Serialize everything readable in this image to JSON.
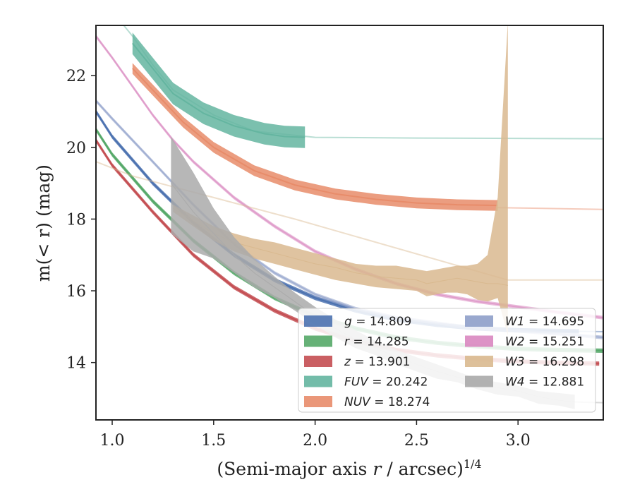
{
  "chart_data": {
    "type": "line",
    "xlabel_main": "(Semi-major axis ",
    "xlabel_var": "r",
    "xlabel_unit": " / arcsec)",
    "xlabel_exp": "1/4",
    "ylabel_main": "m(< r) (mag)",
    "xlim": [
      0.92,
      3.42
    ],
    "ylim": [
      23.4,
      12.4
    ],
    "y_inverted": true,
    "xticks": [
      "1.0",
      "1.5",
      "2.0",
      "2.5",
      "3.0"
    ],
    "xtick_values": [
      1.0,
      1.5,
      2.0,
      2.5,
      3.0
    ],
    "yticks": [
      "14",
      "16",
      "18",
      "20",
      "22"
    ],
    "ytick_values": [
      14,
      16,
      18,
      20,
      22
    ],
    "legend_position": "lower-right",
    "series": [
      {
        "name": "g",
        "value": "14.809",
        "color": "#4c72b0",
        "x": [
          0.92,
          1.0,
          1.2,
          1.4,
          1.6,
          1.8,
          2.0,
          2.2,
          2.4,
          2.6,
          2.8,
          3.0,
          3.2,
          3.3
        ],
        "y": [
          21.0,
          20.3,
          19.0,
          17.9,
          17.0,
          16.3,
          15.8,
          15.45,
          15.2,
          15.05,
          14.95,
          14.9,
          14.88,
          14.87
        ],
        "band": 0.06,
        "faint_x": [
          3.3,
          3.42
        ],
        "faint_y": [
          14.87,
          14.86
        ]
      },
      {
        "name": "r",
        "value": "14.285",
        "color": "#55a868",
        "x": [
          0.92,
          1.0,
          1.2,
          1.4,
          1.6,
          1.8,
          2.0,
          2.2,
          2.4,
          2.6,
          2.8,
          3.0,
          3.2,
          3.42
        ],
        "y": [
          20.5,
          19.8,
          18.5,
          17.4,
          16.5,
          15.8,
          15.3,
          14.95,
          14.7,
          14.55,
          14.45,
          14.38,
          14.35,
          14.33
        ],
        "band": 0.06
      },
      {
        "name": "z",
        "value": "13.901",
        "color": "#c44e52",
        "x": [
          0.92,
          1.0,
          1.2,
          1.4,
          1.6,
          1.8,
          2.0,
          2.2,
          2.4,
          2.6,
          2.8,
          3.0,
          3.2,
          3.4
        ],
        "y": [
          20.2,
          19.5,
          18.2,
          17.0,
          16.1,
          15.45,
          14.95,
          14.6,
          14.35,
          14.2,
          14.1,
          14.03,
          13.99,
          13.97
        ],
        "band": 0.06
      },
      {
        "name": "FUV",
        "value": "20.242",
        "color": "#64b5a0",
        "x": [
          1.1,
          1.3,
          1.45,
          1.6,
          1.75,
          1.85,
          1.95
        ],
        "y": [
          22.9,
          21.5,
          20.95,
          20.6,
          20.38,
          20.3,
          20.28
        ],
        "band": 0.3,
        "faint_x": [
          0.92,
          1.0,
          1.1,
          1.2,
          1.3,
          1.5,
          1.7,
          2.0,
          2.5,
          3.0,
          3.42
        ],
        "faint_y": [
          24.4,
          23.8,
          23.1,
          22.3,
          21.6,
          20.9,
          20.45,
          20.28,
          20.26,
          20.25,
          20.24
        ]
      },
      {
        "name": "NUV",
        "value": "18.274",
        "color": "#e88c6a",
        "x": [
          1.1,
          1.2,
          1.35,
          1.5,
          1.7,
          1.9,
          2.1,
          2.3,
          2.5,
          2.7,
          2.9
        ],
        "y": [
          22.2,
          21.6,
          20.7,
          20.0,
          19.35,
          18.95,
          18.7,
          18.55,
          18.45,
          18.4,
          18.38
        ],
        "band": 0.15,
        "faint_x": [
          2.9,
          3.42
        ],
        "faint_y": [
          18.32,
          18.27
        ]
      },
      {
        "name": "W1",
        "value": "14.695",
        "color": "#8e9ec9",
        "x": [
          0.92,
          1.0,
          1.2,
          1.4,
          1.6,
          1.8,
          2.0,
          2.2,
          2.4,
          2.6,
          2.8,
          3.0,
          3.2,
          3.42
        ],
        "y": [
          21.3,
          20.8,
          19.6,
          18.4,
          17.3,
          16.5,
          15.9,
          15.5,
          15.25,
          15.1,
          14.95,
          14.88,
          14.8,
          14.7
        ],
        "band": 0.05,
        "faint": true
      },
      {
        "name": "W2",
        "value": "15.251",
        "color": "#d987c0",
        "x": [
          0.92,
          1.0,
          1.1,
          1.2,
          1.3,
          1.4,
          1.6,
          1.8,
          2.0,
          2.2,
          2.4,
          2.6,
          2.8,
          3.0,
          3.2,
          3.42
        ],
        "y": [
          23.1,
          22.5,
          21.7,
          20.9,
          20.2,
          19.6,
          18.6,
          17.8,
          17.1,
          16.6,
          16.2,
          15.9,
          15.7,
          15.55,
          15.4,
          15.25
        ],
        "band": 0.05,
        "faint": true
      },
      {
        "name": "W3",
        "value": "16.298",
        "color": "#d9b98f",
        "x": [
          1.3,
          1.4,
          1.5,
          1.6,
          1.7,
          1.8,
          1.9,
          2.0,
          2.1,
          2.2,
          2.3,
          2.4,
          2.5,
          2.55,
          2.6,
          2.65,
          2.7,
          2.75,
          2.8,
          2.85,
          2.9,
          2.95
        ],
        "y": [
          18.3,
          17.95,
          17.6,
          17.35,
          17.2,
          17.05,
          16.9,
          16.75,
          16.65,
          16.5,
          16.4,
          16.35,
          16.3,
          16.2,
          16.25,
          16.3,
          16.35,
          16.3,
          16.25,
          16.2,
          16.2,
          16.15
        ],
        "band_lo": [
          18.4,
          18.1,
          17.8,
          17.6,
          17.45,
          17.35,
          17.2,
          17.05,
          16.9,
          16.75,
          16.7,
          16.7,
          16.6,
          16.55,
          16.6,
          16.65,
          16.7,
          16.7,
          16.75,
          17.0,
          18.6,
          23.5
        ],
        "band_hi": [
          18.2,
          17.8,
          17.4,
          17.1,
          16.9,
          16.75,
          16.6,
          16.45,
          16.3,
          16.2,
          16.1,
          16.05,
          16.0,
          15.85,
          15.9,
          15.95,
          15.95,
          15.9,
          15.75,
          15.7,
          15.8,
          14.75
        ],
        "faint_x": [
          0.92,
          1.1,
          1.3,
          1.5,
          1.7,
          1.9,
          2.95,
          3.42
        ],
        "faint_y": [
          19.6,
          19.2,
          18.9,
          18.6,
          18.3,
          18.0,
          16.3,
          16.3
        ]
      },
      {
        "name": "W4",
        "value": "12.881",
        "color": "#aaaaaa",
        "x": [
          1.29,
          1.4,
          1.5,
          1.6,
          1.7,
          1.8,
          1.9,
          2.0,
          2.1,
          2.2,
          2.3,
          2.4,
          2.5,
          2.6,
          2.7,
          2.8,
          2.9,
          3.0,
          3.1,
          3.2,
          3.28
        ],
        "y": [
          19.0,
          18.2,
          17.6,
          17.0,
          16.5,
          16.1,
          15.7,
          15.3,
          14.95,
          14.65,
          14.4,
          14.15,
          13.95,
          13.75,
          13.6,
          13.4,
          13.3,
          13.2,
          13.05,
          12.95,
          12.9
        ],
        "band_lo": [
          20.3,
          19.3,
          18.3,
          17.5,
          16.9,
          16.4,
          15.95,
          15.55,
          15.2,
          14.9,
          14.6,
          14.35,
          14.15,
          13.95,
          13.75,
          13.55,
          13.45,
          13.35,
          13.2,
          13.15,
          13.1
        ],
        "band_hi": [
          17.6,
          17.1,
          16.9,
          16.5,
          16.1,
          15.8,
          15.45,
          15.05,
          14.7,
          14.4,
          14.2,
          13.95,
          13.75,
          13.55,
          13.45,
          13.25,
          13.1,
          13.05,
          12.85,
          12.8,
          12.7
        ],
        "faint_x": [
          3.28,
          3.42
        ],
        "faint_y": [
          12.9,
          12.88
        ]
      }
    ]
  }
}
